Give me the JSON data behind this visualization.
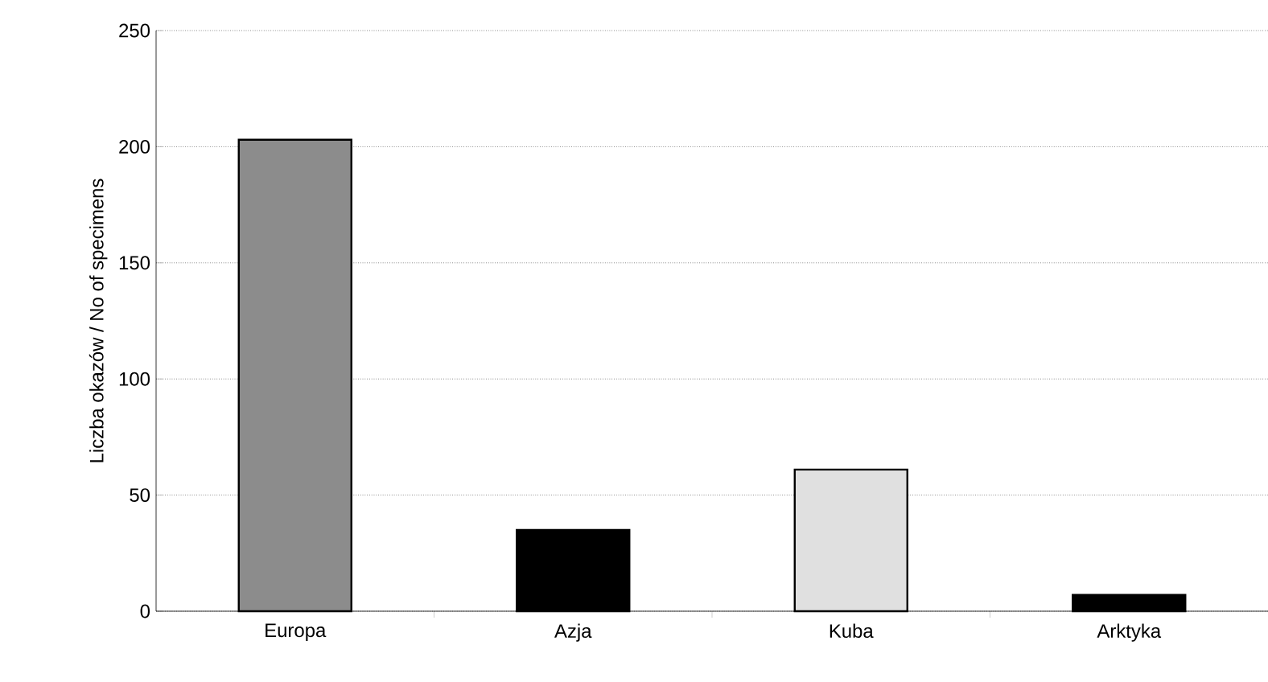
{
  "chart_data": {
    "type": "bar",
    "ylabel": "Liczba okazów / No of specimens",
    "categories": [
      "Europa",
      "Azja",
      "Kuba",
      "Arktyka"
    ],
    "values": [
      203,
      35,
      61,
      7
    ],
    "colors": [
      "#8c8c8c",
      "#000000",
      "#e0e0e0",
      "#000000"
    ],
    "ylim": [
      0,
      250
    ],
    "yticks": [
      0,
      50,
      100,
      150,
      200,
      250
    ],
    "grid": "y"
  }
}
